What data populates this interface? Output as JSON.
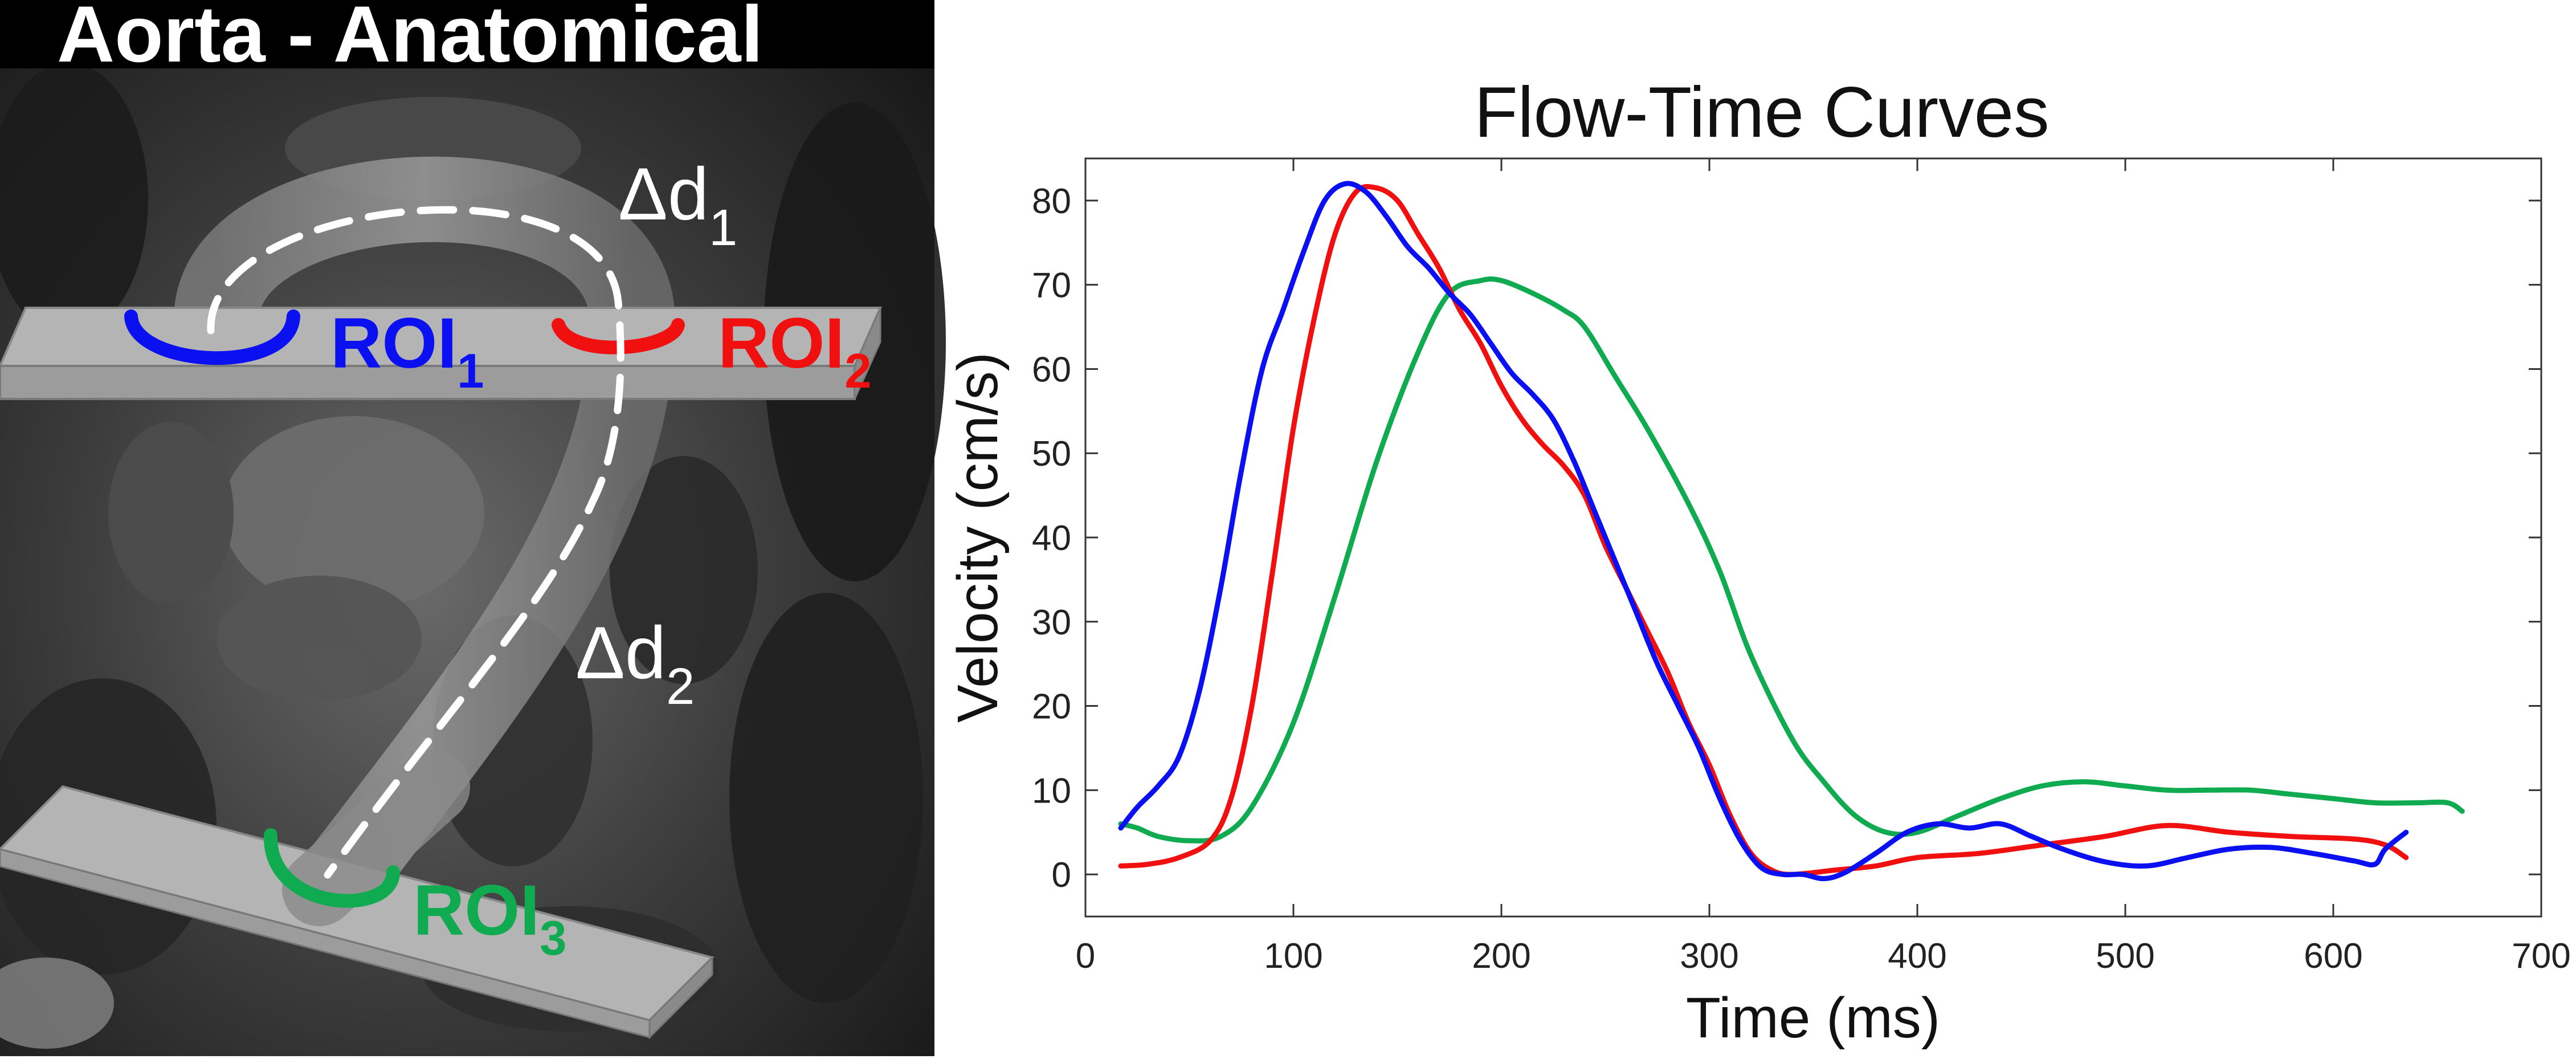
{
  "left_panel": {
    "title": "Aorta - Anatomical",
    "delta_labels": [
      {
        "base": "Δd",
        "sub": "1"
      },
      {
        "base": "Δd",
        "sub": "2"
      }
    ],
    "roi_labels": [
      {
        "base": "ROI",
        "sub": "1",
        "color": "#0a10f0"
      },
      {
        "base": "ROI",
        "sub": "2",
        "color": "#f01010"
      },
      {
        "base": "ROI",
        "sub": "3",
        "color": "#10aa50"
      }
    ]
  },
  "chart_data": {
    "type": "line",
    "title": "Flow-Time Curves",
    "xlabel": "Time (ms)",
    "ylabel": "Velocity (cm/s)",
    "xlim": [
      0,
      700
    ],
    "ylim": [
      -5,
      85
    ],
    "xticks": [
      0,
      100,
      200,
      300,
      400,
      500,
      600,
      700
    ],
    "yticks": [
      0,
      10,
      20,
      30,
      40,
      50,
      60,
      70,
      80
    ],
    "grid": false,
    "series": [
      {
        "color": "#10aa50",
        "x": [
          17,
          25,
          35,
          50,
          65,
          80,
          100,
          120,
          140,
          160,
          175,
          190,
          200,
          215,
          230,
          240,
          255,
          270,
          290,
          305,
          320,
          340,
          355,
          370,
          385,
          400,
          420,
          440,
          460,
          480,
          500,
          520,
          540,
          560,
          580,
          600,
          620,
          640,
          655,
          662
        ],
        "y": [
          6,
          5.5,
          4.5,
          4,
          4.5,
          8,
          18,
          33,
          49,
          62,
          69,
          70.5,
          70.5,
          69,
          67,
          65,
          59,
          53,
          44,
          36,
          26,
          16,
          11,
          7,
          5,
          5,
          7,
          9,
          10.5,
          11,
          10.5,
          10,
          10,
          10,
          9.5,
          9,
          8.5,
          8.5,
          8.5,
          7.5
        ]
      },
      {
        "color": "#f01010",
        "x": [
          17,
          30,
          45,
          60,
          70,
          80,
          90,
          100,
          110,
          120,
          130,
          140,
          150,
          160,
          170,
          180,
          190,
          200,
          210,
          220,
          230,
          240,
          250,
          260,
          270,
          280,
          290,
          300,
          310,
          320,
          330,
          340,
          360,
          380,
          400,
          430,
          460,
          490,
          520,
          550,
          580,
          610,
          625,
          635
        ],
        "y": [
          1,
          1.2,
          2,
          4,
          9,
          20,
          36,
          53,
          66,
          76,
          81,
          81.5,
          80,
          76,
          72,
          67,
          63,
          58,
          54,
          51,
          48.5,
          45,
          39,
          34,
          29,
          24,
          18,
          13,
          7,
          2.5,
          0.5,
          0,
          0.5,
          1,
          2,
          2.5,
          3.5,
          4.5,
          5.8,
          5,
          4.5,
          4.2,
          3.5,
          2
        ]
      },
      {
        "color": "#0a10f0",
        "x": [
          17,
          25,
          35,
          45,
          55,
          65,
          75,
          85,
          95,
          105,
          115,
          125,
          135,
          145,
          155,
          165,
          175,
          185,
          195,
          205,
          215,
          225,
          235,
          245,
          255,
          265,
          275,
          285,
          295,
          305,
          315,
          325,
          335,
          345,
          355,
          365,
          380,
          395,
          410,
          425,
          440,
          455,
          470,
          490,
          510,
          530,
          550,
          570,
          590,
          610,
          620,
          625,
          635
        ],
        "y": [
          5.5,
          8,
          10.5,
          14,
          22,
          34,
          48,
          60,
          67,
          74,
          80,
          82,
          81,
          78,
          74.5,
          72,
          69,
          66.5,
          63,
          59.5,
          57,
          54,
          49,
          43,
          37,
          31,
          25,
          20,
          15,
          9,
          4,
          0.8,
          0,
          0,
          -0.5,
          0.2,
          2.5,
          5,
          6,
          5.5,
          6,
          4.5,
          3,
          1.5,
          1,
          2,
          3,
          3.2,
          2.5,
          1.6,
          1.2,
          3,
          5
        ]
      }
    ]
  }
}
